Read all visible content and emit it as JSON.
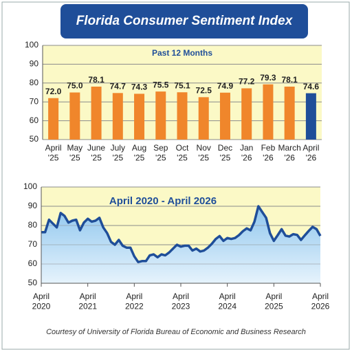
{
  "title": "Florida Consumer Sentiment Index",
  "credit": "Courtesy of University of Florida Bureau of Economic and Business Research",
  "chart_data": [
    {
      "type": "bar",
      "subtitle": "Past 12 Months",
      "categories": [
        "April '25",
        "May '25",
        "June '25",
        "July '25",
        "Aug '25",
        "Sep '25",
        "Oct '25",
        "Nov '25",
        "Dec '25",
        "Jan '26",
        "Feb '26",
        "March '26",
        "April '26"
      ],
      "values": [
        72.0,
        75.0,
        78.1,
        74.7,
        74.3,
        75.5,
        75.1,
        72.5,
        74.9,
        77.2,
        79.3,
        78.1,
        74.6
      ],
      "value_labels": [
        "72.0",
        "75.0",
        "78.1",
        "74.7",
        "74.3",
        "75.5",
        "75.1",
        "72.5",
        "74.9",
        "77.2",
        "79.3",
        "78.1",
        "74.6"
      ],
      "colors": [
        "#f0862b",
        "#f0862b",
        "#f0862b",
        "#f0862b",
        "#f0862b",
        "#f0862b",
        "#f0862b",
        "#f0862b",
        "#f0862b",
        "#f0862b",
        "#f0862b",
        "#f0862b",
        "#1f4e99"
      ],
      "ylim": [
        50,
        100
      ],
      "yticks": [
        50,
        60,
        70,
        80,
        90,
        100
      ],
      "grid": true
    },
    {
      "type": "area",
      "title": "April 2020 - April 2026",
      "x": [
        "2020-04",
        "2020-05",
        "2020-06",
        "2020-07",
        "2020-08",
        "2020-09",
        "2020-10",
        "2020-11",
        "2020-12",
        "2021-01",
        "2021-02",
        "2021-03",
        "2021-04",
        "2021-05",
        "2021-06",
        "2021-07",
        "2021-08",
        "2021-09",
        "2021-10",
        "2021-11",
        "2021-12",
        "2022-01",
        "2022-02",
        "2022-03",
        "2022-04",
        "2022-05",
        "2022-06",
        "2022-07",
        "2022-08",
        "2022-09",
        "2022-10",
        "2022-11",
        "2022-12",
        "2023-01",
        "2023-02",
        "2023-03",
        "2023-04",
        "2023-05",
        "2023-06",
        "2023-07",
        "2023-08",
        "2023-09",
        "2023-10",
        "2023-11",
        "2023-12",
        "2024-01",
        "2024-02",
        "2024-03",
        "2024-04",
        "2024-05",
        "2024-06",
        "2024-07",
        "2024-08",
        "2024-09",
        "2024-10",
        "2024-11",
        "2024-12",
        "2025-01",
        "2025-02",
        "2025-03",
        "2025-04",
        "2025-05",
        "2025-06",
        "2025-07",
        "2025-08",
        "2025-09",
        "2025-10",
        "2025-11",
        "2025-12",
        "2026-01",
        "2026-02",
        "2026-03",
        "2026-04"
      ],
      "values": [
        76.5,
        76.5,
        83,
        81,
        79,
        86.5,
        85,
        81.5,
        82.5,
        83,
        77.5,
        81.5,
        83.5,
        82,
        82.5,
        84,
        79,
        76,
        71.5,
        70,
        72.5,
        69.5,
        68.5,
        68.5,
        64,
        61,
        61.5,
        61.5,
        64.5,
        65,
        63.5,
        65,
        64.5,
        66,
        68,
        70,
        69,
        69.5,
        69.5,
        67,
        68,
        66.5,
        67,
        68.5,
        70.5,
        73,
        74.5,
        72,
        73.5,
        73,
        73.5,
        75,
        77,
        78.5,
        77.5,
        82,
        90,
        87,
        84,
        76,
        72,
        75,
        78.1,
        74.7,
        74.3,
        75.5,
        75.1,
        72.5,
        74.9,
        77.2,
        79.3,
        78.1,
        74.6
      ],
      "color": "#1f4e99",
      "xlim": [
        "2020-04",
        "2026-04"
      ],
      "xticks": [
        {
          "value": "2020-04",
          "label": "April 2020"
        },
        {
          "value": "2021-04",
          "label": "April 2021"
        },
        {
          "value": "2022-04",
          "label": "April 2022"
        },
        {
          "value": "2023-04",
          "label": "April 2023"
        },
        {
          "value": "2024-04",
          "label": "April 2024"
        },
        {
          "value": "2025-04",
          "label": "April 2025"
        },
        {
          "value": "2026-04",
          "label": "April 2026"
        }
      ],
      "ylim": [
        50,
        100
      ],
      "yticks": [
        50,
        60,
        70,
        80,
        90,
        100
      ],
      "grid": true
    }
  ]
}
